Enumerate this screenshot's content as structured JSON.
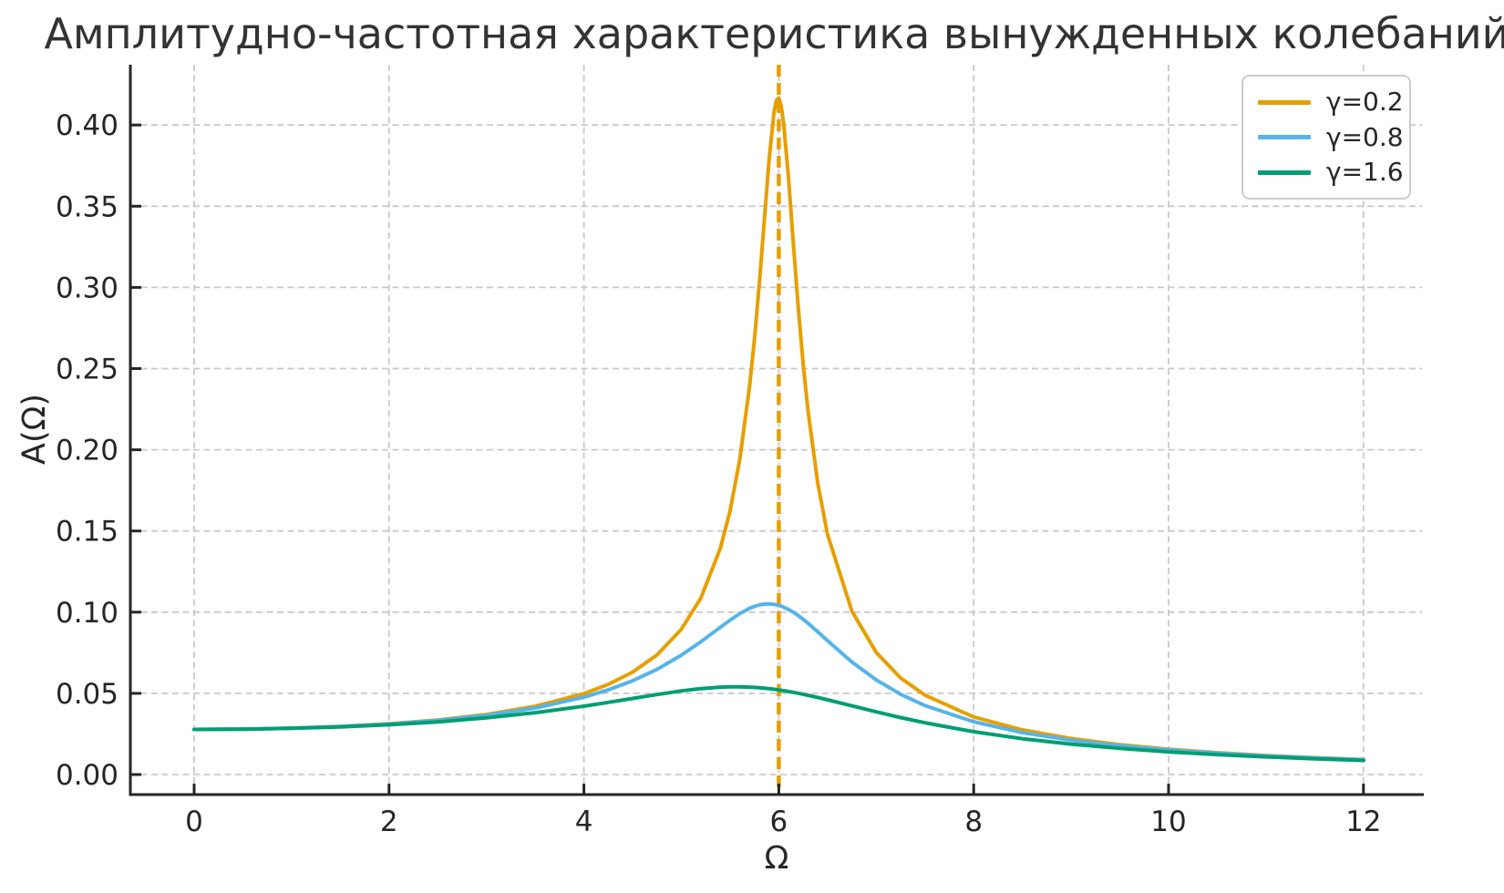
{
  "chart_data": {
    "type": "line",
    "title": "Амплитудно-частотная характеристика вынужденных колебаний",
    "xlabel": "Ω",
    "ylabel": "A(Ω)",
    "xlim": [
      -0.66,
      12.62
    ],
    "ylim": [
      -0.0127,
      0.437
    ],
    "xticks": [
      0,
      2,
      4,
      6,
      8,
      10,
      12
    ],
    "yticks": [
      0.0,
      0.05,
      0.1,
      0.15,
      0.2,
      0.25,
      0.3,
      0.35,
      0.4
    ],
    "ytick_labels": [
      "0.00",
      "0.05",
      "0.10",
      "0.15",
      "0.20",
      "0.25",
      "0.30",
      "0.35",
      "0.40"
    ],
    "grid": true,
    "grid_style": "dashed",
    "legend_position": "upper right",
    "x": [
      0,
      0.5,
      1,
      1.5,
      2,
      2.5,
      3,
      3.5,
      4,
      4.25,
      4.5,
      4.75,
      5,
      5.2,
      5.4,
      5.5,
      5.6,
      5.7,
      5.75,
      5.8,
      5.85,
      5.9,
      5.95,
      5.975,
      6,
      6.025,
      6.05,
      6.1,
      6.15,
      6.2,
      6.25,
      6.3,
      6.4,
      6.5,
      6.75,
      7,
      7.25,
      7.5,
      8,
      8.5,
      9,
      9.5,
      10,
      10.5,
      11,
      11.5,
      12
    ],
    "series": [
      {
        "name": "γ=0.2",
        "color": "#E69F00",
        "values": [
          0.02778,
          0.02797,
          0.02857,
          0.02963,
          0.03124,
          0.03359,
          0.037,
          0.04203,
          0.04984,
          0.0555,
          0.06308,
          0.07369,
          0.08944,
          0.10872,
          0.13941,
          0.16243,
          0.19409,
          0.23892,
          0.268,
          0.30217,
          0.3403,
          0.37836,
          0.40752,
          0.41517,
          0.41667,
          0.41174,
          0.40098,
          0.36718,
          0.32663,
          0.28743,
          0.25297,
          0.22379,
          0.17916,
          0.14773,
          0.10064,
          0.0752,
          0.05947,
          0.04885,
          0.03548,
          0.02747,
          0.02215,
          0.01839,
          0.0156,
          0.01345,
          0.01175,
          0.01038,
          0.00925
        ]
      },
      {
        "name": "γ=0.8",
        "color": "#56B4E9",
        "values": [
          0.02778,
          0.02796,
          0.02854,
          0.02956,
          0.0311,
          0.03331,
          0.03647,
          0.04098,
          0.04762,
          0.05213,
          0.05774,
          0.06478,
          0.07352,
          0.08179,
          0.09075,
          0.09513,
          0.09911,
          0.10233,
          0.10354,
          0.10443,
          0.10496,
          0.1051,
          0.10484,
          0.10455,
          0.10417,
          0.10368,
          0.10311,
          0.10168,
          0.09993,
          0.09789,
          0.09562,
          0.09316,
          0.08789,
          0.08242,
          0.06932,
          0.05828,
          0.04945,
          0.04248,
          0.03248,
          0.02583,
          0.02117,
          0.01775,
          0.01516,
          0.01314,
          0.01152,
          0.01021,
          0.00912
        ]
      },
      {
        "name": "γ=1.6",
        "color": "#009E73",
        "values": [
          0.02778,
          0.02794,
          0.02845,
          0.02933,
          0.03064,
          0.03246,
          0.0349,
          0.03808,
          0.04211,
          0.04442,
          0.04686,
          0.04929,
          0.0515,
          0.05291,
          0.05381,
          0.05401,
          0.05402,
          0.05384,
          0.05367,
          0.05345,
          0.05318,
          0.05286,
          0.0525,
          0.05229,
          0.05208,
          0.05186,
          0.05163,
          0.05113,
          0.0506,
          0.05003,
          0.04942,
          0.04879,
          0.04746,
          0.04604,
          0.04233,
          0.03861,
          0.03508,
          0.03185,
          0.02636,
          0.02207,
          0.01872,
          0.01608,
          0.01398,
          0.01227,
          0.01087,
          0.0097,
          0.00872
        ]
      }
    ],
    "vline": {
      "x": 6,
      "color": "#E69F00",
      "style": "dashed"
    },
    "colors": {
      "grid": "#c9c9c9",
      "spine": "#262626",
      "tick_text": "#262626",
      "title_text": "#333333",
      "background": "#ffffff"
    }
  }
}
